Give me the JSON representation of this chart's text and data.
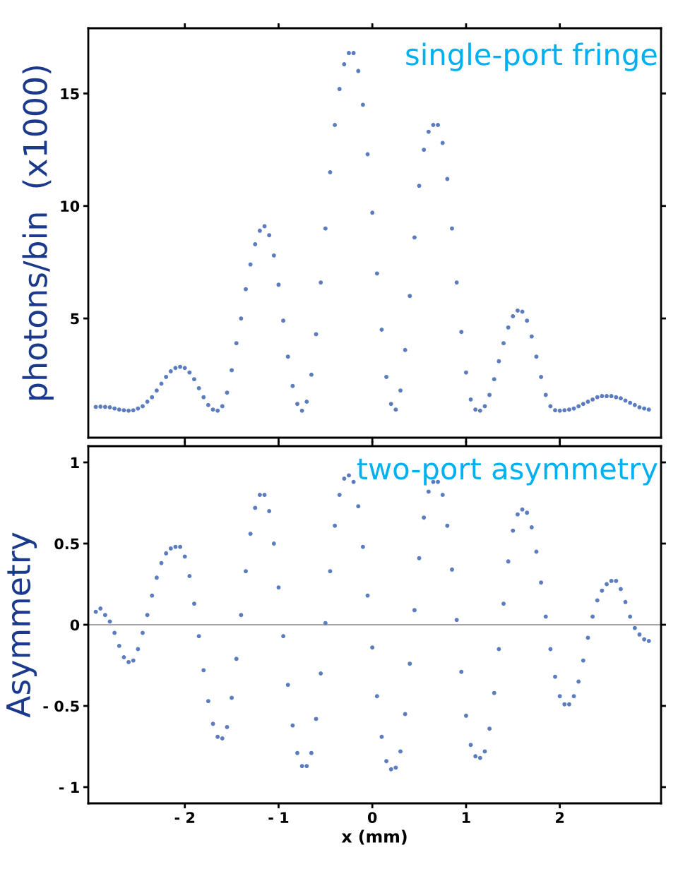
{
  "chart_data": [
    {
      "type": "scatter",
      "ylabel": "photons/bin  (x1000)",
      "annotations": [
        "single-port fringe"
      ],
      "xlim": [
        -3.03,
        3.08
      ],
      "ylim": [
        -0.3,
        17.9
      ],
      "xticks": [
        -2,
        -1,
        0,
        1,
        2
      ],
      "yticks": [
        5,
        10,
        15
      ],
      "tick_labels": "y",
      "marker": "circle",
      "grid": false,
      "legend": false,
      "x": [
        -2.95,
        -2.9,
        -2.85,
        -2.8,
        -2.75,
        -2.7,
        -2.65,
        -2.6,
        -2.55,
        -2.5,
        -2.45,
        -2.4,
        -2.35,
        -2.3,
        -2.25,
        -2.2,
        -2.15,
        -2.1,
        -2.05,
        -2.0,
        -1.95,
        -1.9,
        -1.85,
        -1.8,
        -1.75,
        -1.7,
        -1.65,
        -1.6,
        -1.55,
        -1.5,
        -1.45,
        -1.4,
        -1.35,
        -1.3,
        -1.25,
        -1.2,
        -1.15,
        -1.1,
        -1.05,
        -1.0,
        -0.95,
        -0.9,
        -0.85,
        -0.8,
        -0.75,
        -0.7,
        -0.65,
        -0.6,
        -0.55,
        -0.5,
        -0.45,
        -0.4,
        -0.35,
        -0.3,
        -0.25,
        -0.2,
        -0.15,
        -0.1,
        -0.05,
        0.0,
        0.05,
        0.1,
        0.15,
        0.2,
        0.25,
        0.3,
        0.35,
        0.4,
        0.45,
        0.5,
        0.55,
        0.6,
        0.65,
        0.7,
        0.75,
        0.8,
        0.85,
        0.9,
        0.95,
        1.0,
        1.05,
        1.1,
        1.15,
        1.2,
        1.25,
        1.3,
        1.35,
        1.4,
        1.45,
        1.5,
        1.55,
        1.6,
        1.65,
        1.7,
        1.75,
        1.8,
        1.85,
        1.9,
        1.95,
        2.0,
        2.05,
        2.1,
        2.15,
        2.2,
        2.25,
        2.3,
        2.35,
        2.4,
        2.45,
        2.5,
        2.55,
        2.6,
        2.65,
        2.7,
        2.75,
        2.8,
        2.85,
        2.9,
        2.95
      ],
      "series": [
        {
          "color": "#5b7dbf",
          "values": [
            1.07,
            1.08,
            1.07,
            1.05,
            1.0,
            0.95,
            0.92,
            0.9,
            0.92,
            1.0,
            1.1,
            1.3,
            1.5,
            1.8,
            2.1,
            2.4,
            2.65,
            2.8,
            2.85,
            2.8,
            2.6,
            2.3,
            1.9,
            1.5,
            1.15,
            0.95,
            0.9,
            1.1,
            1.7,
            2.7,
            3.9,
            5.0,
            6.3,
            7.4,
            8.3,
            8.9,
            9.1,
            8.7,
            7.8,
            6.5,
            4.9,
            3.3,
            2.0,
            1.2,
            0.9,
            1.3,
            2.5,
            4.3,
            6.6,
            9.0,
            11.5,
            13.6,
            15.2,
            16.3,
            16.8,
            16.8,
            16.0,
            14.5,
            12.3,
            9.7,
            7.0,
            4.5,
            2.4,
            1.2,
            0.95,
            1.8,
            3.6,
            6.0,
            8.6,
            10.9,
            12.5,
            13.3,
            13.6,
            13.6,
            12.8,
            11.2,
            9.0,
            6.6,
            4.4,
            2.6,
            1.4,
            0.95,
            0.9,
            1.1,
            1.6,
            2.3,
            3.1,
            3.9,
            4.6,
            5.1,
            5.35,
            5.3,
            4.9,
            4.2,
            3.3,
            2.4,
            1.6,
            1.1,
            0.92,
            0.9,
            0.92,
            0.95,
            1.0,
            1.1,
            1.2,
            1.3,
            1.4,
            1.5,
            1.55,
            1.55,
            1.55,
            1.5,
            1.45,
            1.35,
            1.25,
            1.15,
            1.05,
            1.0,
            0.95
          ]
        }
      ]
    },
    {
      "type": "scatter",
      "ylabel": "Asymmetry",
      "xlabel": "x (mm)",
      "annotations": [
        "two-port asymmetry"
      ],
      "xlim": [
        -3.03,
        3.08
      ],
      "ylim": [
        -1.1,
        1.1
      ],
      "xticks": [
        {
          "value": -2,
          "label": "- 2"
        },
        {
          "value": -1,
          "label": "- 1"
        },
        0,
        1,
        2
      ],
      "yticks": [
        {
          "value": -1,
          "label": "- 1"
        },
        {
          "value": -0.5,
          "label": "- 0.5"
        },
        0,
        0.5,
        1
      ],
      "ref_lines": [
        {
          "axis": "y",
          "value": 0,
          "color": "#888888"
        }
      ],
      "marker": "circle",
      "grid": false,
      "legend": false,
      "x": [
        -2.95,
        -2.9,
        -2.85,
        -2.8,
        -2.75,
        -2.7,
        -2.65,
        -2.6,
        -2.55,
        -2.5,
        -2.45,
        -2.4,
        -2.35,
        -2.3,
        -2.25,
        -2.2,
        -2.15,
        -2.1,
        -2.05,
        -2.0,
        -1.95,
        -1.9,
        -1.85,
        -1.8,
        -1.75,
        -1.7,
        -1.65,
        -1.6,
        -1.55,
        -1.5,
        -1.45,
        -1.4,
        -1.35,
        -1.3,
        -1.25,
        -1.2,
        -1.15,
        -1.1,
        -1.05,
        -1.0,
        -0.95,
        -0.9,
        -0.85,
        -0.8,
        -0.75,
        -0.7,
        -0.65,
        -0.6,
        -0.55,
        -0.5,
        -0.45,
        -0.4,
        -0.35,
        -0.3,
        -0.25,
        -0.2,
        -0.15,
        -0.1,
        -0.05,
        0.0,
        0.05,
        0.1,
        0.15,
        0.2,
        0.25,
        0.3,
        0.35,
        0.4,
        0.45,
        0.5,
        0.55,
        0.6,
        0.65,
        0.7,
        0.75,
        0.8,
        0.85,
        0.9,
        0.95,
        1.0,
        1.05,
        1.1,
        1.15,
        1.2,
        1.25,
        1.3,
        1.35,
        1.4,
        1.45,
        1.5,
        1.55,
        1.6,
        1.65,
        1.7,
        1.75,
        1.8,
        1.85,
        1.9,
        1.95,
        2.0,
        2.05,
        2.1,
        2.15,
        2.2,
        2.25,
        2.3,
        2.35,
        2.4,
        2.45,
        2.5,
        2.55,
        2.6,
        2.65,
        2.7,
        2.75,
        2.8,
        2.85,
        2.9,
        2.95
      ],
      "series": [
        {
          "color": "#5b7dbf",
          "values": [
            0.08,
            0.1,
            0.06,
            0.02,
            -0.05,
            -0.13,
            -0.2,
            -0.23,
            -0.22,
            -0.15,
            -0.05,
            0.06,
            0.18,
            0.29,
            0.38,
            0.44,
            0.47,
            0.48,
            0.48,
            0.42,
            0.3,
            0.13,
            -0.07,
            -0.28,
            -0.47,
            -0.61,
            -0.69,
            -0.7,
            -0.63,
            -0.45,
            -0.21,
            0.06,
            0.33,
            0.56,
            0.72,
            0.8,
            0.8,
            0.7,
            0.5,
            0.23,
            -0.07,
            -0.37,
            -0.62,
            -0.79,
            -0.87,
            -0.87,
            -0.79,
            -0.58,
            -0.3,
            0.01,
            0.33,
            0.61,
            0.8,
            0.9,
            0.92,
            0.88,
            0.73,
            0.48,
            0.18,
            -0.14,
            -0.44,
            -0.69,
            -0.84,
            -0.89,
            -0.88,
            -0.78,
            -0.55,
            -0.24,
            0.09,
            0.41,
            0.66,
            0.82,
            0.88,
            0.88,
            0.8,
            0.61,
            0.34,
            0.03,
            -0.29,
            -0.56,
            -0.74,
            -0.81,
            -0.82,
            -0.78,
            -0.64,
            -0.42,
            -0.15,
            0.13,
            0.39,
            0.58,
            0.68,
            0.71,
            0.69,
            0.6,
            0.45,
            0.26,
            0.05,
            -0.15,
            -0.32,
            -0.44,
            -0.49,
            -0.49,
            -0.44,
            -0.35,
            -0.22,
            -0.08,
            0.05,
            0.15,
            0.21,
            0.25,
            0.27,
            0.27,
            0.22,
            0.14,
            0.05,
            -0.02,
            -0.06,
            -0.09,
            -0.1
          ]
        }
      ]
    }
  ]
}
